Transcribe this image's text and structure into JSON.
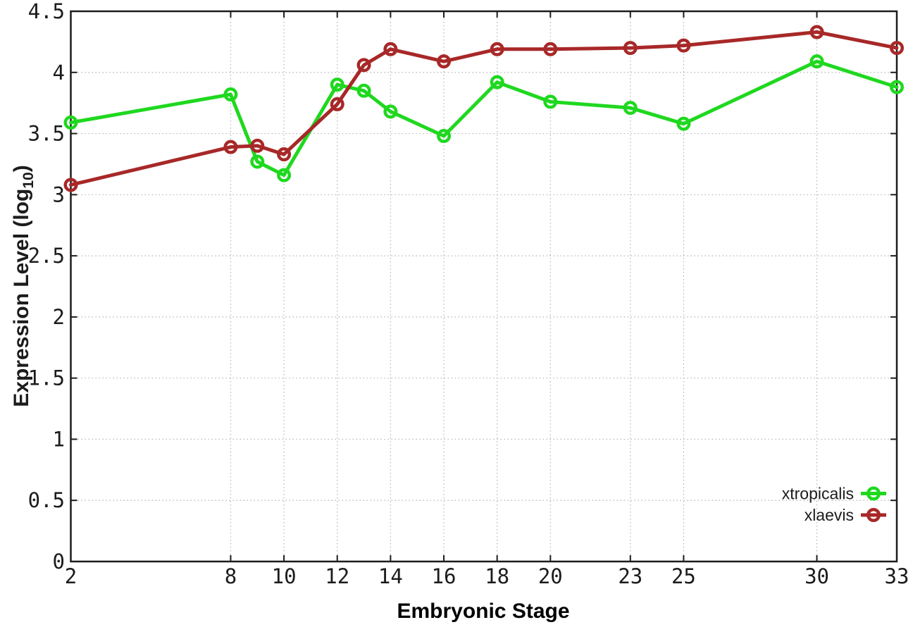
{
  "chart_data": {
    "type": "line",
    "title": "",
    "xlabel": "Embryonic Stage",
    "ylabel": "Expression Level (log10)",
    "ylabel_parts": {
      "main": "Expression Level (log",
      "sub": "10",
      "end": ")"
    },
    "x": [
      2,
      8,
      9,
      10,
      12,
      13,
      14,
      16,
      18,
      20,
      23,
      25,
      30,
      33
    ],
    "series": [
      {
        "name": "xtropicalis",
        "color": "#1fd81f",
        "values": [
          3.59,
          3.82,
          3.27,
          3.16,
          3.9,
          3.85,
          3.68,
          3.48,
          3.92,
          3.76,
          3.71,
          3.58,
          4.09,
          3.88
        ]
      },
      {
        "name": "xlaevis",
        "color": "#a82828",
        "values": [
          3.08,
          3.39,
          3.4,
          3.33,
          3.74,
          4.06,
          4.19,
          4.09,
          4.19,
          4.19,
          4.2,
          4.22,
          4.33,
          4.2
        ]
      }
    ],
    "xlim": [
      2,
      33
    ],
    "ylim": [
      0,
      4.5
    ],
    "x_ticks": [
      2,
      8,
      10,
      12,
      14,
      16,
      18,
      20,
      23,
      25,
      30,
      33
    ],
    "x_tick_labels": [
      "2",
      "8",
      "10",
      "12",
      "14",
      "16",
      "18",
      "20",
      "23",
      "25",
      "30",
      "33"
    ],
    "y_ticks": [
      0,
      0.5,
      1,
      1.5,
      2,
      2.5,
      3,
      3.5,
      4,
      4.5
    ],
    "y_tick_labels": [
      "0",
      "0.5",
      "1",
      "1.5",
      "2",
      "2.5",
      "3",
      "3.5",
      "4",
      "4.5"
    ],
    "grid": true,
    "legend_position": "bottom-right",
    "marker": "open-circle"
  },
  "colors": {
    "background": "#ffffff",
    "border": "#1c1c1c",
    "grid": "#b3b3b3",
    "text": "#1c1c1c"
  }
}
